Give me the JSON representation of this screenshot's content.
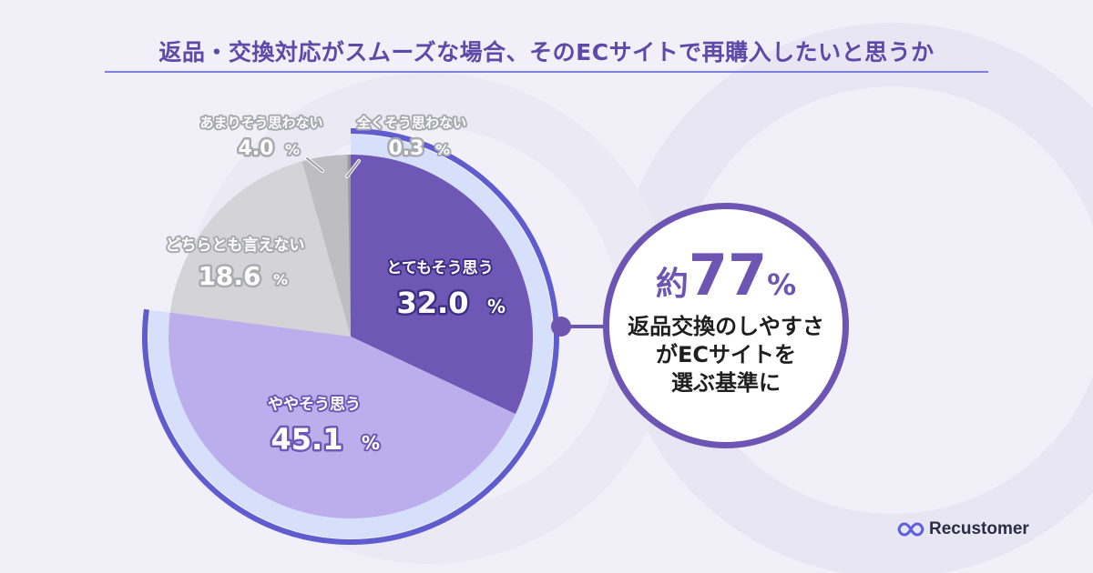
{
  "title": "返品・交換対応がスムーズな場合、そのECサイトで再購入したいと思うか",
  "chart_data": {
    "type": "pie",
    "title": "返品・交換対応がスムーズな場合、そのECサイトで再購入したいと思うか",
    "unit": "%",
    "slices": [
      {
        "label": "とてもそう思う",
        "value": 32.0,
        "value_text": "32.0",
        "color": "#6f57b5"
      },
      {
        "label": "ややそう思う",
        "value": 45.1,
        "value_text": "45.1",
        "color": "#bcaeec"
      },
      {
        "label": "どちらとも言えない",
        "value": 18.6,
        "value_text": "18.6",
        "color": "#d3d3d8"
      },
      {
        "label": "あまりそう思わない",
        "value": 4.0,
        "value_text": "4.0",
        "color": "#bdbdc2"
      },
      {
        "label": "全くそう思わない",
        "value": 0.3,
        "value_text": "0.3",
        "color": "#9c9ca3"
      }
    ],
    "highlight_ring_covers": [
      "とてもそう思う",
      "ややそう思う"
    ]
  },
  "callout": {
    "prefix": "約",
    "value": "77",
    "unit": "%",
    "lines": [
      "返品交換のしやすさ",
      "がECサイトを",
      "選ぶ基準に"
    ]
  },
  "brand": {
    "name": "Recustomer",
    "accent": "#5b5fe0"
  }
}
